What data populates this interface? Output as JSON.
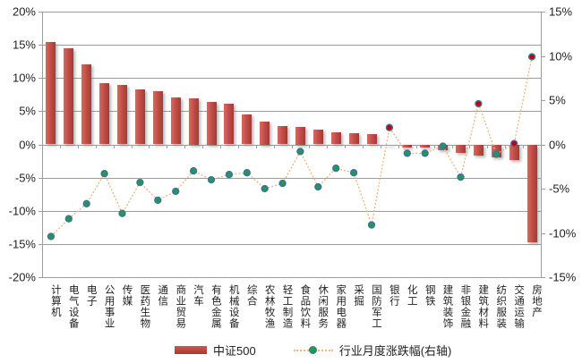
{
  "chart_data": {
    "type": "bar",
    "title": "",
    "grid": true,
    "legend_position": "bottom",
    "categories": [
      "计算机",
      "电气设备",
      "电子",
      "公用事业",
      "传媒",
      "医药生物",
      "通信",
      "商业贸易",
      "汽车",
      "有色金属",
      "机械设备",
      "综合",
      "农林牧渔",
      "轻工制造",
      "食品饮料",
      "休闲服务",
      "家用电器",
      "采掘",
      "国防军工",
      "银行",
      "化工",
      "钢铁",
      "建筑装饰",
      "非银金融",
      "建筑材料",
      "纺织服装",
      "交通运输",
      "房地产"
    ],
    "series": [
      {
        "name": "中证500",
        "type": "bar",
        "axis": "left",
        "values": [
          15.4,
          14.5,
          12.0,
          9.2,
          8.9,
          8.3,
          8.0,
          7.1,
          7.0,
          6.4,
          6.1,
          4.5,
          3.5,
          2.8,
          2.7,
          2.2,
          1.8,
          1.7,
          1.6,
          -0.1,
          -0.4,
          -0.5,
          -0.9,
          -1.3,
          -1.7,
          -2.0,
          -2.3,
          -14.7
        ]
      },
      {
        "name": "行业月度涨跌幅(右轴)",
        "type": "scatter-line",
        "axis": "right",
        "values": [
          -10.4,
          -8.4,
          -6.7,
          -3.3,
          -7.8,
          -4.3,
          -6.3,
          -5.3,
          -3.0,
          -4.0,
          -3.4,
          -3.2,
          -5.0,
          -4.4,
          -0.8,
          -4.8,
          -2.7,
          -3.2,
          -9.1,
          1.9,
          -1.0,
          -1.0,
          -0.2,
          -3.7,
          4.6,
          -1.1,
          0.1,
          9.9
        ]
      }
    ],
    "left_axis": {
      "min": -20,
      "max": 20,
      "step": 5,
      "tick_labels": [
        "20%",
        "15%",
        "10%",
        "5%",
        "0%",
        "-5%",
        "-10%",
        "-15%",
        "-20%"
      ]
    },
    "right_axis": {
      "min": -15,
      "max": 15,
      "step": 5,
      "tick_labels": [
        "15%",
        "10%",
        "5%",
        "0%",
        "-5%",
        "-10%",
        "-15%"
      ]
    }
  },
  "legend": {
    "bar_series_label": "中证500",
    "dot_series_label": "行业月度涨跌幅(右轴)"
  },
  "colors": {
    "bar_light": "#d56a5f",
    "bar_dark": "#a83832",
    "line": "#f2b27e",
    "dot_positive": "#c00000",
    "dot_negative": "#1f9a52",
    "dot_border": "#41709f",
    "grid": "#9c9c9c",
    "text": "#1f1f1f"
  }
}
